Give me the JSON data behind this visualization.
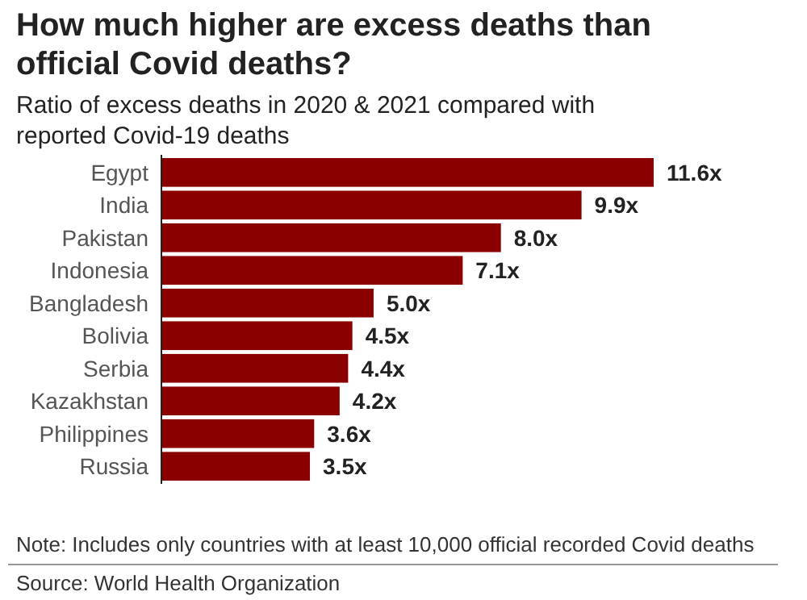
{
  "chart_data": {
    "type": "bar",
    "orientation": "horizontal",
    "title": "How much higher are excess deaths than official Covid deaths?",
    "subtitle": "Ratio of excess deaths in 2020 & 2021 compared with reported Covid-19 deaths",
    "categories": [
      "Egypt",
      "India",
      "Pakistan",
      "Indonesia",
      "Bangladesh",
      "Bolivia",
      "Serbia",
      "Kazakhstan",
      "Philippines",
      "Russia"
    ],
    "values": [
      11.6,
      9.9,
      8.0,
      7.1,
      5.0,
      4.5,
      4.4,
      4.2,
      3.6,
      3.5
    ],
    "value_labels": [
      "11.6x",
      "9.9x",
      "8.0x",
      "7.1x",
      "5.0x",
      "4.5x",
      "4.4x",
      "4.2x",
      "3.6x",
      "3.5x"
    ],
    "color": "#8a0000",
    "annotations": [
      "Note: Includes only countries with at least 10,000 official recorded Covid deaths",
      "Source: World Health Organization"
    ]
  }
}
